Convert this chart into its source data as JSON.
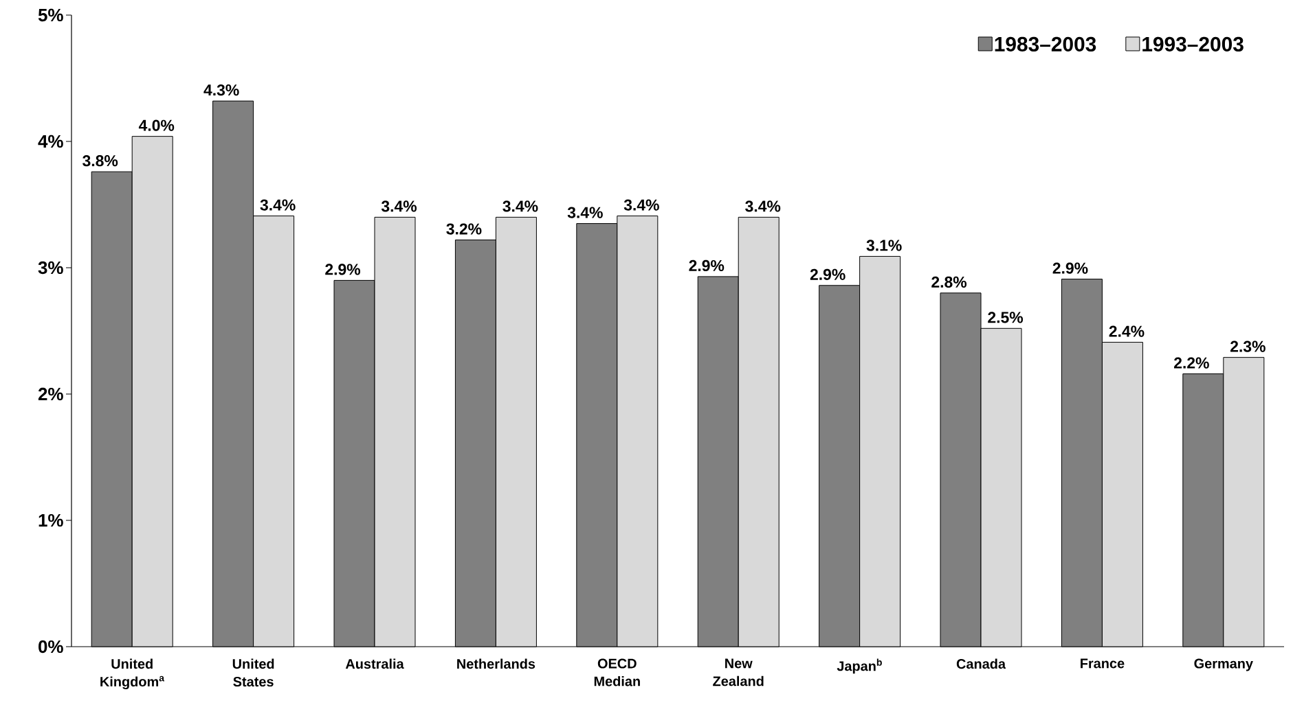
{
  "chart_data": {
    "type": "bar",
    "categories": [
      "United Kingdom$^{a}$",
      "United States",
      "Australia",
      "Netherlands",
      "OECD Median",
      "New Zealand",
      "Japan$^{b}$",
      "Canada",
      "France",
      "Germany"
    ],
    "series": [
      {
        "name": "1983–2003",
        "color": "#808080",
        "values": [
          3.76,
          4.32,
          2.9,
          3.22,
          3.35,
          2.93,
          2.86,
          2.8,
          2.91,
          2.16
        ],
        "value_labels": [
          "3.8%",
          "4.3%",
          "2.9%",
          "3.2%",
          "3.4%",
          "2.9%",
          "2.9%",
          "2.8%",
          "2.9%",
          "2.2%"
        ]
      },
      {
        "name": "1993–2003",
        "color": "#d9d9d9",
        "values": [
          4.04,
          3.41,
          3.4,
          3.4,
          3.41,
          3.4,
          3.09,
          2.52,
          2.41,
          2.29
        ],
        "value_labels": [
          "4.0%",
          "3.4%",
          "3.4%",
          "3.4%",
          "3.4%",
          "3.4%",
          "3.1%",
          "2.5%",
          "2.4%",
          "2.3%"
        ]
      }
    ],
    "ylim": [
      0,
      5
    ],
    "yticks": [
      {
        "value": 0,
        "label": "0%"
      },
      {
        "value": 1,
        "label": "1%"
      },
      {
        "value": 2,
        "label": "2%"
      },
      {
        "value": 3,
        "label": "3%"
      },
      {
        "value": 4,
        "label": "4%"
      },
      {
        "value": 5,
        "label": "5%"
      }
    ],
    "legend": "top right"
  }
}
